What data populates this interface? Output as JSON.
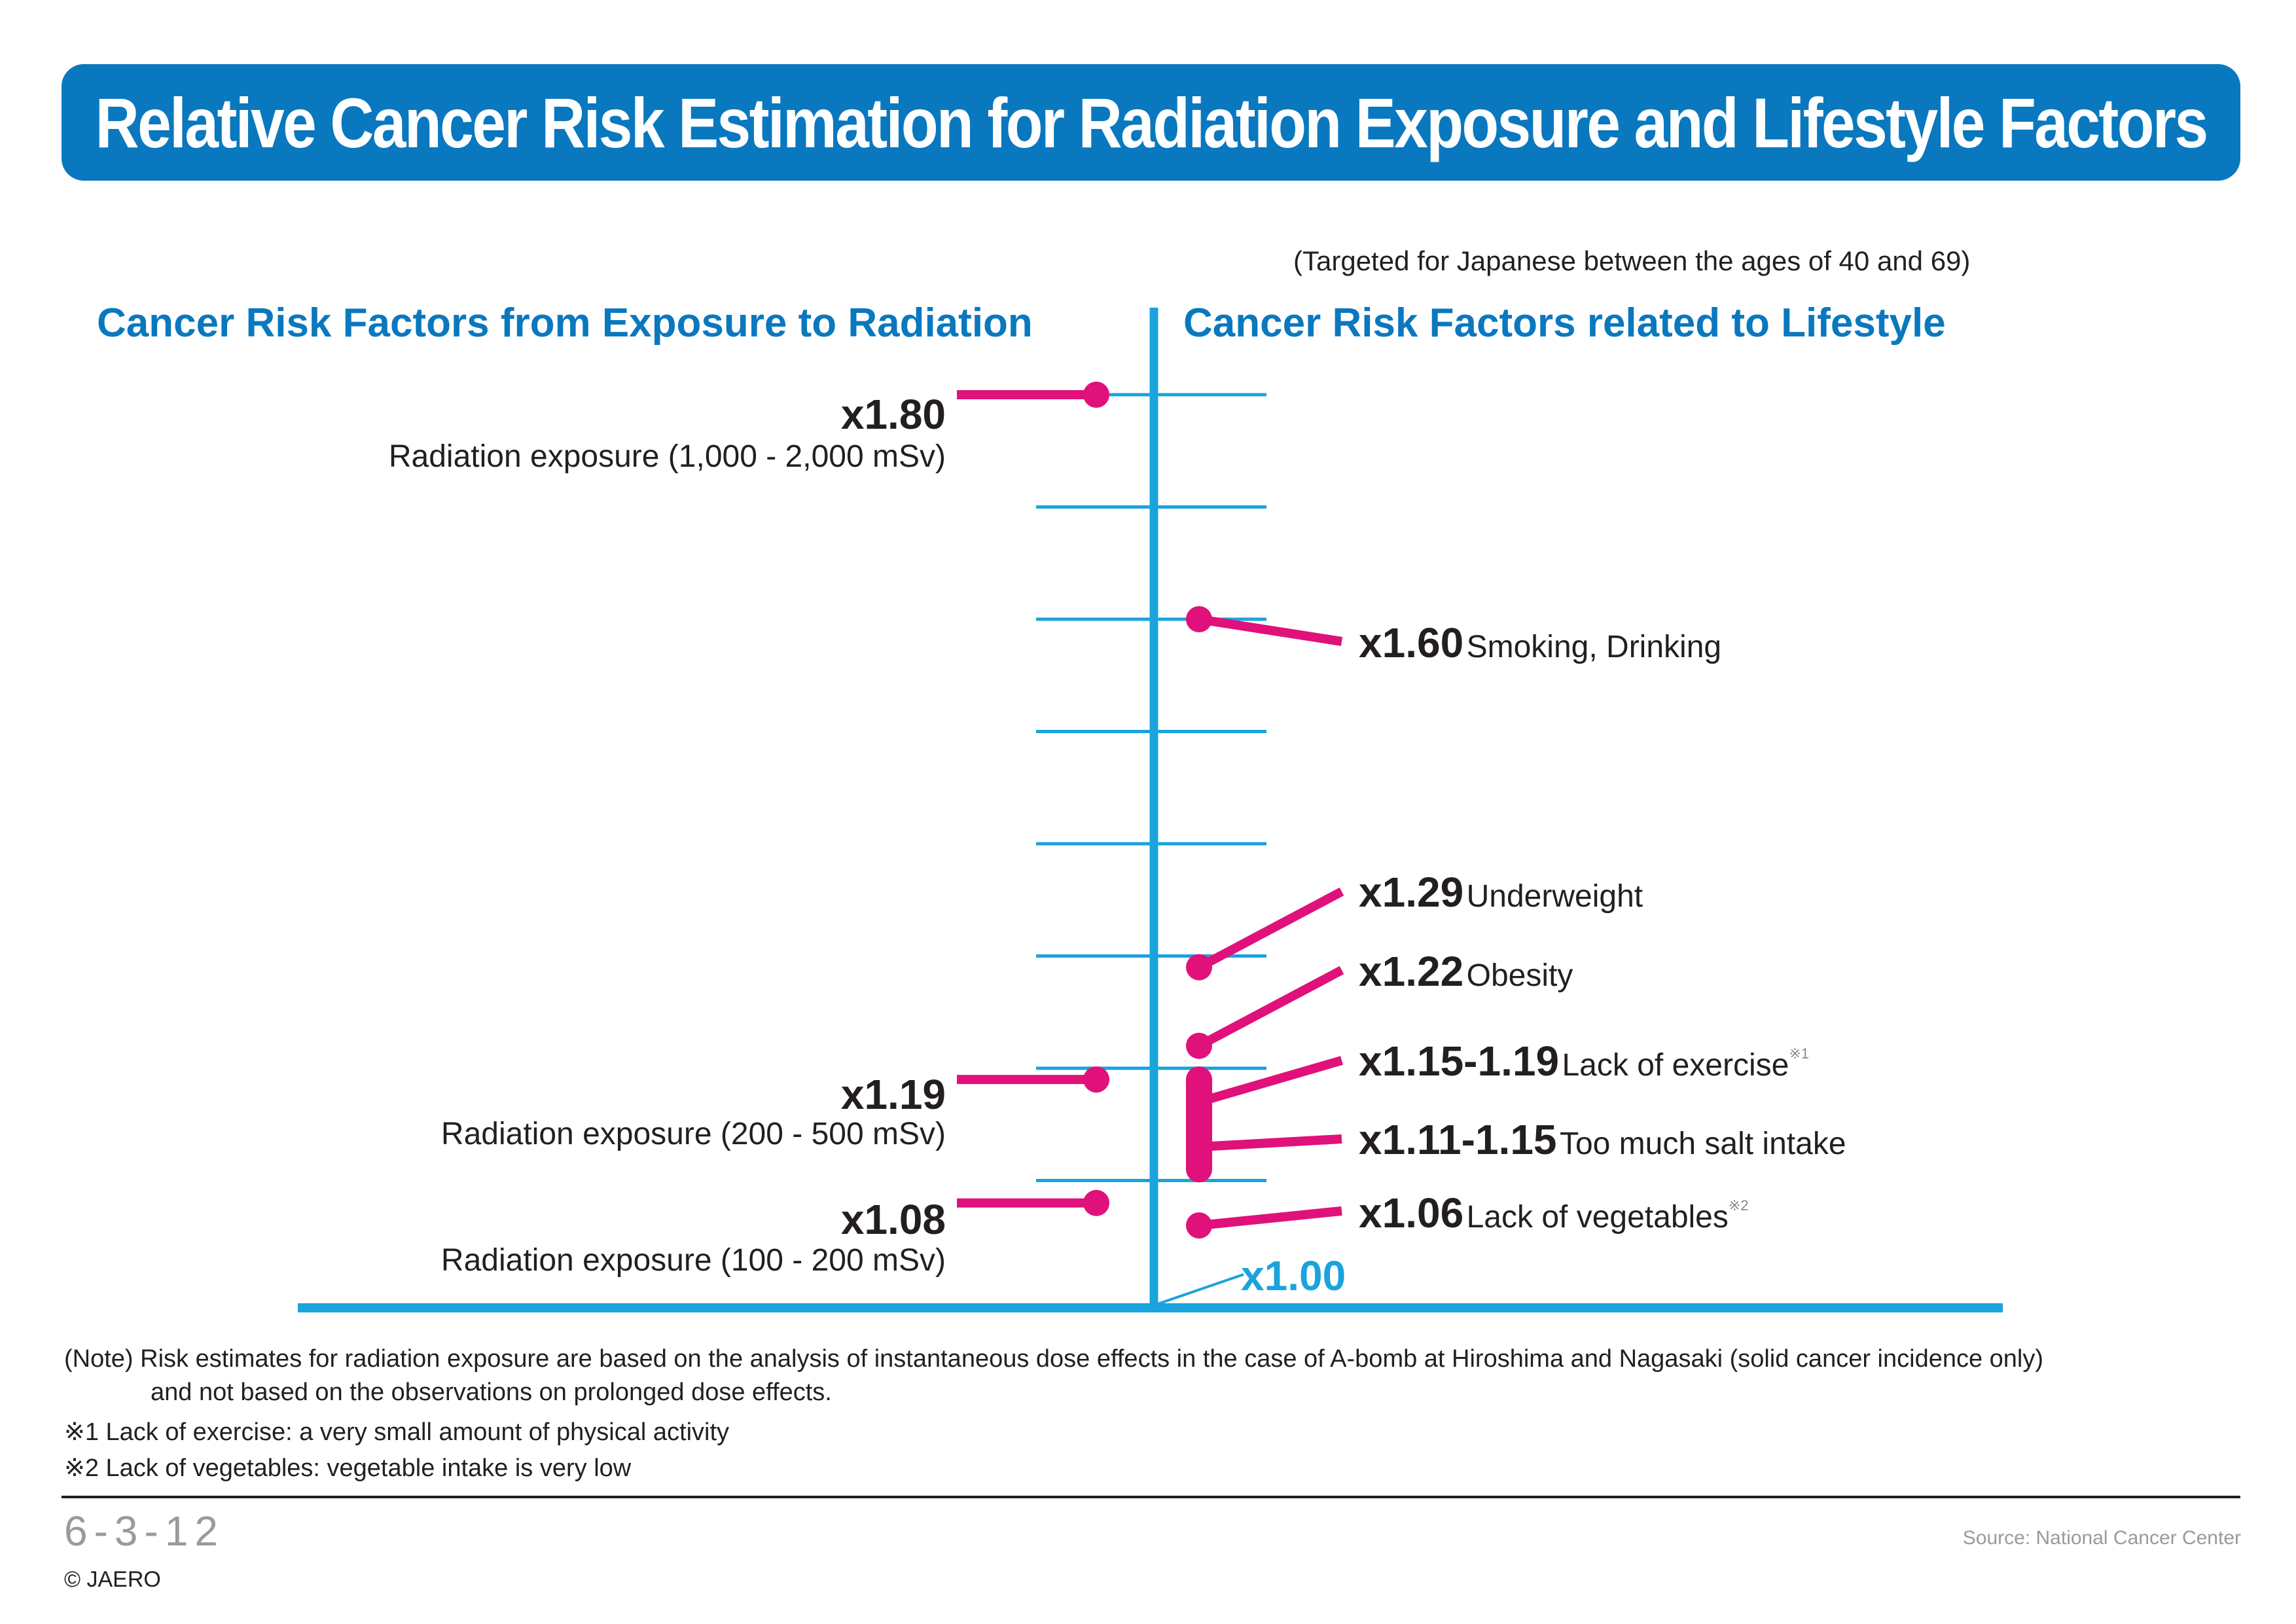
{
  "title": "Relative Cancer Risk Estimation for Radiation Exposure and Lifestyle Factors",
  "subtitle": "(Targeted for Japanese between the ages of 40 and 69)",
  "left_heading": "Cancer Risk Factors from Exposure to Radiation",
  "right_heading": "Cancer Risk Factors related to Lifestyle",
  "colors": {
    "banner": "#0a78bf",
    "axis": "#1aa3dd",
    "marker": "#e0117a",
    "heading": "#0a78bf"
  },
  "chart_data": {
    "type": "scatter",
    "title": "Relative Cancer Risk Estimation for Radiation Exposure and Lifestyle Factors",
    "baseline": 1.0,
    "baseline_label": "x1.00",
    "radiation": [
      {
        "value": 1.8,
        "value_label": "x1.80",
        "label": "Radiation exposure (1,000 - 2,000 mSv)"
      },
      {
        "value": 1.19,
        "value_label": "x1.19",
        "label": "Radiation exposure (200 - 500 mSv)"
      },
      {
        "value": 1.08,
        "value_label": "x1.08",
        "label": "Radiation exposure (100 - 200 mSv)"
      }
    ],
    "lifestyle": [
      {
        "value": 1.6,
        "value_label": "x1.60",
        "label": "Smoking, Drinking"
      },
      {
        "value": 1.29,
        "value_label": "x1.29",
        "label": "Underweight"
      },
      {
        "value": 1.22,
        "value_label": "x1.22",
        "label": "Obesity"
      },
      {
        "value": [
          1.15,
          1.19
        ],
        "value_label": "x1.15-1.19",
        "label": "Lack of exercise",
        "footnote_mark": "※1"
      },
      {
        "value": [
          1.11,
          1.15
        ],
        "value_label": "x1.11-1.15",
        "label": "Too much salt intake"
      },
      {
        "value": 1.06,
        "value_label": "x1.06",
        "label": "Lack of vegetables",
        "footnote_mark": "※2"
      }
    ]
  },
  "notes": {
    "line1": "(Note) Risk estimates for radiation exposure are based on the analysis of instantaneous dose effects in the case of A-bomb at Hiroshima and Nagasaki (solid cancer incidence only)",
    "line2": "and not based on the observations on prolonged dose effects.",
    "fn1": "※1  Lack of exercise: a very small amount of physical activity",
    "fn2": "※2  Lack of vegetables: vegetable intake is very low"
  },
  "footer": {
    "page_number": "6-3-12",
    "copyright": "© JAERO",
    "source": "Source: National Cancer Center"
  }
}
